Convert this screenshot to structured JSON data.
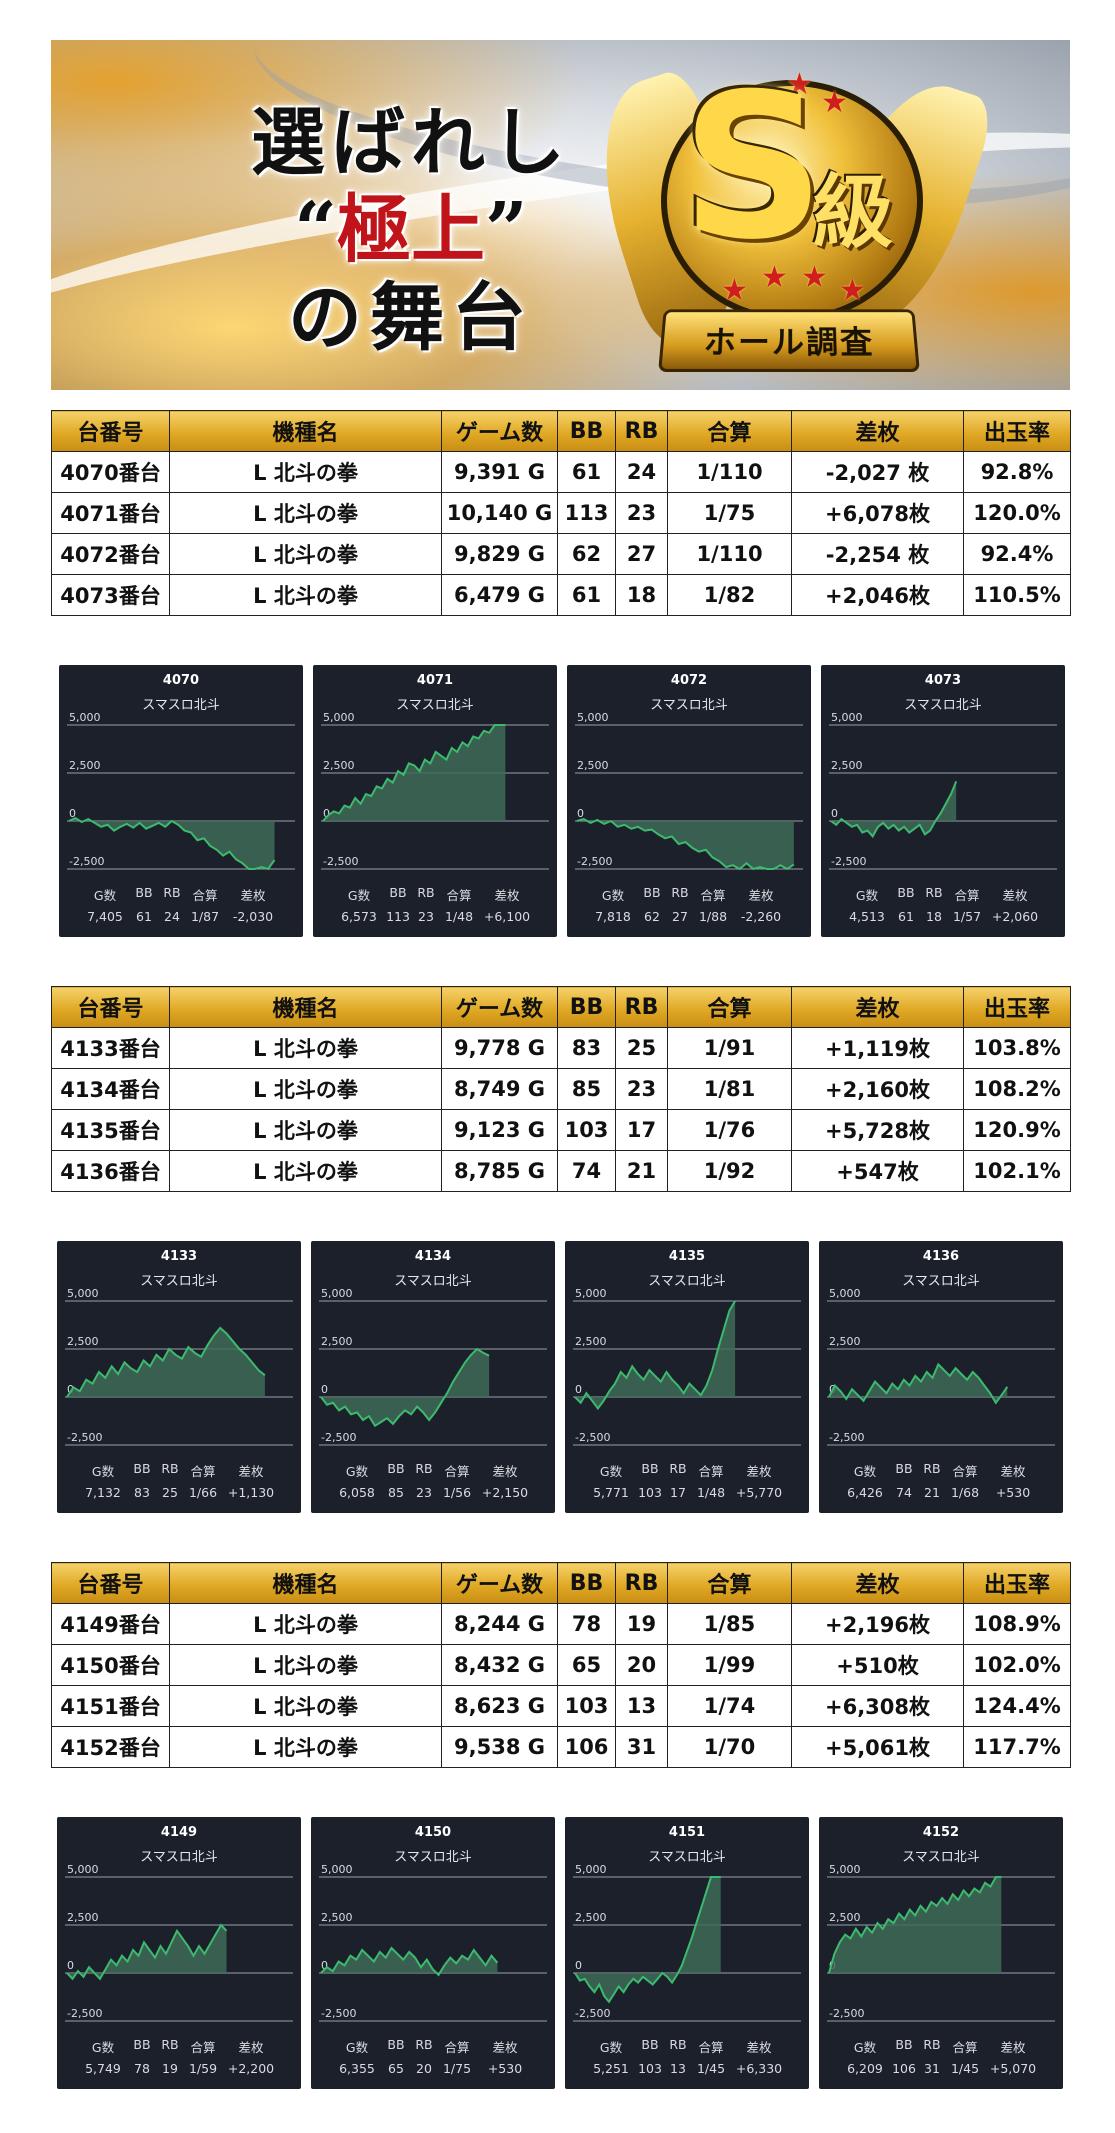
{
  "banner": {
    "title_line1": "選ばれし",
    "title_quote_open": "“",
    "title_highlight": "極上",
    "title_quote_close": "”",
    "title_line3": "の舞台",
    "badge_letter": "S",
    "badge_kanji": "級",
    "badge_ribbon": "ホール調査"
  },
  "table_headers": [
    "台番号",
    "機種名",
    "ゲーム数",
    "BB",
    "RB",
    "合算",
    "差枚",
    "出玉率"
  ],
  "groups": [
    {
      "rows": [
        {
          "no": "4070番台",
          "machine": "L 北斗の拳",
          "games": "9,391 G",
          "bb": "61",
          "rb": "24",
          "total": "1/110",
          "diff": "-2,027 枚",
          "sign": "neg",
          "rate": "92.8%"
        },
        {
          "no": "4071番台",
          "machine": "L 北斗の拳",
          "games": "10,140 G",
          "bb": "113",
          "rb": "23",
          "total": "1/75",
          "diff": "+6,078枚",
          "sign": "pos",
          "rate": "120.0%"
        },
        {
          "no": "4072番台",
          "machine": "L 北斗の拳",
          "games": "9,829 G",
          "bb": "62",
          "rb": "27",
          "total": "1/110",
          "diff": "-2,254 枚",
          "sign": "neg",
          "rate": "92.4%"
        },
        {
          "no": "4073番台",
          "machine": "L 北斗の拳",
          "games": "6,479 G",
          "bb": "61",
          "rb": "18",
          "total": "1/82",
          "diff": "+2,046枚",
          "sign": "pos",
          "rate": "110.5%"
        }
      ],
      "charts": [
        {
          "id": "4070",
          "name": "スマスロ北斗",
          "g": "7,405",
          "bb": "61",
          "rb": "24",
          "total": "1/87",
          "diff": "-2,030",
          "series": [
            0,
            150,
            -50,
            100,
            -100,
            -300,
            -200,
            -500,
            -300,
            -150,
            -350,
            -100,
            -400,
            -250,
            -100,
            -300,
            0,
            -200,
            -500,
            -600,
            -1000,
            -900,
            -1300,
            -1500,
            -1800,
            -1600,
            -2000,
            -2200,
            -2500,
            -2700,
            -2400,
            -2600,
            -2030
          ]
        },
        {
          "id": "4071",
          "name": "スマスロ北斗",
          "g": "6,573",
          "bb": "113",
          "rb": "23",
          "total": "1/48",
          "diff": "+6,100",
          "series": [
            0,
            300,
            500,
            400,
            800,
            700,
            1200,
            900,
            1400,
            1300,
            1800,
            1700,
            2200,
            2000,
            2600,
            2400,
            3000,
            2900,
            2600,
            3200,
            3000,
            3600,
            3400,
            3200,
            3800,
            3600,
            4100,
            3900,
            4400,
            4300,
            4700,
            4600,
            5000,
            5500,
            6100
          ]
        },
        {
          "id": "4072",
          "name": "スマスロ北斗",
          "g": "7,818",
          "bb": "62",
          "rb": "27",
          "total": "1/88",
          "diff": "-2,260",
          "series": [
            0,
            100,
            -100,
            50,
            -150,
            0,
            -300,
            -200,
            -400,
            -300,
            -500,
            -450,
            -700,
            -900,
            -800,
            -1200,
            -1100,
            -1400,
            -1600,
            -1500,
            -1900,
            -2100,
            -2400,
            -2300,
            -2500,
            -2200,
            -2500,
            -2400,
            -2700,
            -2500,
            -2300,
            -2600,
            -2260
          ]
        },
        {
          "id": "4073",
          "name": "スマスロ北斗",
          "g": "4,513",
          "bb": "61",
          "rb": "18",
          "total": "1/57",
          "diff": "+2,060",
          "series": [
            0,
            -200,
            100,
            -100,
            -300,
            -200,
            -600,
            -500,
            -800,
            -300,
            -100,
            -400,
            -200,
            -500,
            -300,
            -600,
            -400,
            -200,
            -700,
            -500,
            0,
            400,
            900,
            1400,
            2060
          ]
        }
      ]
    },
    {
      "rows": [
        {
          "no": "4133番台",
          "machine": "L 北斗の拳",
          "games": "9,778 G",
          "bb": "83",
          "rb": "25",
          "total": "1/91",
          "diff": "+1,119枚",
          "sign": "pos",
          "rate": "103.8%"
        },
        {
          "no": "4134番台",
          "machine": "L 北斗の拳",
          "games": "8,749 G",
          "bb": "85",
          "rb": "23",
          "total": "1/81",
          "diff": "+2,160枚",
          "sign": "pos",
          "rate": "108.2%"
        },
        {
          "no": "4135番台",
          "machine": "L 北斗の拳",
          "games": "9,123 G",
          "bb": "103",
          "rb": "17",
          "total": "1/76",
          "diff": "+5,728枚",
          "sign": "pos",
          "rate": "120.9%"
        },
        {
          "no": "4136番台",
          "machine": "L 北斗の拳",
          "games": "8,785 G",
          "bb": "74",
          "rb": "21",
          "total": "1/92",
          "diff": "+547枚",
          "sign": "pos",
          "rate": "102.1%"
        }
      ],
      "charts": [
        {
          "id": "4133",
          "name": "スマスロ北斗",
          "g": "7,132",
          "bb": "83",
          "rb": "25",
          "total": "1/66",
          "diff": "+1,130",
          "series": [
            0,
            500,
            300,
            900,
            700,
            1300,
            1000,
            1600,
            1200,
            1800,
            1500,
            1300,
            1900,
            1600,
            2200,
            1900,
            2500,
            2200,
            2000,
            2600,
            2300,
            2100,
            2700,
            3200,
            3600,
            3300,
            2900,
            2500,
            2200,
            1800,
            1400,
            1130
          ]
        },
        {
          "id": "4134",
          "name": "スマスロ北斗",
          "g": "6,058",
          "bb": "85",
          "rb": "23",
          "total": "1/56",
          "diff": "+2,150",
          "series": [
            0,
            -400,
            -300,
            -700,
            -500,
            -900,
            -800,
            -1200,
            -1000,
            -1500,
            -1300,
            -1100,
            -1400,
            -1000,
            -700,
            -900,
            -500,
            -800,
            -1200,
            -800,
            -300,
            200,
            800,
            1300,
            1800,
            2200,
            2500,
            2300,
            2150
          ]
        },
        {
          "id": "4135",
          "name": "スマスロ北斗",
          "g": "5,771",
          "bb": "103",
          "rb": "17",
          "total": "1/48",
          "diff": "+5,770",
          "series": [
            0,
            -300,
            200,
            -200,
            -600,
            -200,
            300,
            700,
            1300,
            1000,
            1600,
            1200,
            900,
            1400,
            1100,
            800,
            1300,
            900,
            600,
            200,
            700,
            400,
            100,
            600,
            1400,
            2500,
            3500,
            4500,
            5770
          ]
        },
        {
          "id": "4136",
          "name": "スマスロ北斗",
          "g": "6,426",
          "bb": "74",
          "rb": "21",
          "total": "1/68",
          "diff": "+530",
          "series": [
            0,
            600,
            300,
            -100,
            400,
            100,
            -200,
            300,
            800,
            500,
            200,
            700,
            400,
            900,
            600,
            1100,
            800,
            1300,
            1000,
            1700,
            1400,
            1100,
            1500,
            1200,
            900,
            1300,
            1000,
            600,
            200,
            -300,
            100,
            530
          ]
        }
      ]
    },
    {
      "rows": [
        {
          "no": "4149番台",
          "machine": "L 北斗の拳",
          "games": "8,244 G",
          "bb": "78",
          "rb": "19",
          "total": "1/85",
          "diff": "+2,196枚",
          "sign": "pos",
          "rate": "108.9%"
        },
        {
          "no": "4150番台",
          "machine": "L 北斗の拳",
          "games": "8,432 G",
          "bb": "65",
          "rb": "20",
          "total": "1/99",
          "diff": "+510枚",
          "sign": "pos",
          "rate": "102.0%"
        },
        {
          "no": "4151番台",
          "machine": "L 北斗の拳",
          "games": "8,623 G",
          "bb": "103",
          "rb": "13",
          "total": "1/74",
          "diff": "+6,308枚",
          "sign": "pos",
          "rate": "124.4%"
        },
        {
          "no": "4152番台",
          "machine": "L 北斗の拳",
          "games": "9,538 G",
          "bb": "106",
          "rb": "31",
          "total": "1/70",
          "diff": "+5,061枚",
          "sign": "pos",
          "rate": "117.7%"
        }
      ],
      "charts": [
        {
          "id": "4149",
          "name": "スマスロ北斗",
          "g": "5,749",
          "bb": "78",
          "rb": "19",
          "total": "1/59",
          "diff": "+2,200",
          "series": [
            0,
            -300,
            100,
            -200,
            300,
            0,
            -300,
            200,
            700,
            400,
            900,
            600,
            1200,
            900,
            1600,
            1200,
            800,
            1400,
            1000,
            1600,
            2200,
            1800,
            1400,
            900,
            1400,
            1000,
            1500,
            2000,
            2500,
            2200
          ]
        },
        {
          "id": "4150",
          "name": "スマスロ北斗",
          "g": "6,355",
          "bb": "65",
          "rb": "20",
          "total": "1/75",
          "diff": "+530",
          "series": [
            0,
            300,
            100,
            600,
            400,
            900,
            700,
            1200,
            900,
            600,
            1100,
            800,
            1300,
            1000,
            700,
            1100,
            800,
            300,
            700,
            200,
            -100,
            400,
            800,
            500,
            900,
            700,
            1200,
            800,
            400,
            900,
            530
          ]
        },
        {
          "id": "4151",
          "name": "スマスロ北斗",
          "g": "5,251",
          "bb": "103",
          "rb": "13",
          "total": "1/45",
          "diff": "+6,330",
          "series": [
            0,
            -400,
            -300,
            -700,
            -1000,
            -600,
            -1200,
            -1500,
            -1100,
            -700,
            -1000,
            -600,
            -300,
            -500,
            -200,
            -400,
            -600,
            -300,
            0,
            -200,
            -500,
            -100,
            400,
            1100,
            1800,
            2600,
            3400,
            4200,
            5000,
            5700,
            6330
          ]
        },
        {
          "id": "4152",
          "name": "スマスロ北斗",
          "g": "6,209",
          "bb": "106",
          "rb": "31",
          "total": "1/45",
          "diff": "+5,070",
          "series": [
            0,
            1000,
            1600,
            2000,
            1800,
            2300,
            1900,
            2400,
            2100,
            2600,
            2300,
            2800,
            2600,
            3100,
            2800,
            3300,
            3000,
            3500,
            3200,
            3700,
            3500,
            3900,
            3600,
            4100,
            3800,
            4300,
            4000,
            4400,
            4200,
            4700,
            4500,
            5000,
            5070
          ]
        }
      ]
    }
  ],
  "chart_labels": {
    "g": "G数",
    "bb": "BB",
    "rb": "RB",
    "total": "合算",
    "diff": "差枚"
  },
  "chart_axis": {
    "ticks": [
      "5,000",
      "2,500",
      "0",
      "-2,500"
    ],
    "tick_values": [
      5000,
      2500,
      0,
      -2500
    ],
    "ylim": [
      -2500,
      5000
    ]
  },
  "colors": {
    "header_gold": "#e0a926",
    "positive": "#1a1ad6",
    "negative": "#e01010",
    "chart_bg": "#1b202b",
    "chart_line": "#3cba6e",
    "chart_fill": "#3e6b57"
  }
}
